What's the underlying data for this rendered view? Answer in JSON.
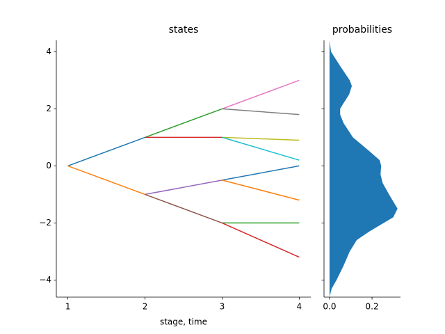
{
  "chart_data": [
    {
      "type": "line",
      "title": "states",
      "xlabel": "stage, time",
      "xlim": [
        0.85,
        4.15
      ],
      "xticks": [
        1,
        2,
        3,
        4
      ],
      "ylim": [
        -4.6,
        4.4
      ],
      "yticks": [
        {
          "value": -4,
          "label": "−4"
        },
        {
          "value": -2,
          "label": "−2"
        },
        0,
        2,
        4
      ],
      "series": [
        {
          "color": "#1f77b4",
          "x": [
            1,
            2
          ],
          "values": [
            0,
            1
          ]
        },
        {
          "color": "#ff7f0e",
          "x": [
            1,
            2
          ],
          "values": [
            0,
            -1
          ]
        },
        {
          "color": "#2ca02c",
          "x": [
            2,
            3
          ],
          "values": [
            1,
            2
          ]
        },
        {
          "color": "#d62728",
          "x": [
            2,
            3
          ],
          "values": [
            1,
            1
          ]
        },
        {
          "color": "#9467bd",
          "x": [
            2,
            3
          ],
          "values": [
            -1,
            -0.5
          ]
        },
        {
          "color": "#8c564b",
          "x": [
            2,
            3
          ],
          "values": [
            -1,
            -2
          ]
        },
        {
          "color": "#e377c2",
          "x": [
            3,
            4
          ],
          "values": [
            2,
            3
          ]
        },
        {
          "color": "#7f7f7f",
          "x": [
            3,
            4
          ],
          "values": [
            2,
            1.8
          ]
        },
        {
          "color": "#bcbd22",
          "x": [
            3,
            4
          ],
          "values": [
            1,
            0.9
          ]
        },
        {
          "color": "#17becf",
          "x": [
            3,
            4
          ],
          "values": [
            1,
            0.2
          ]
        },
        {
          "color": "#1f77b4",
          "x": [
            3,
            4
          ],
          "values": [
            -0.5,
            0
          ]
        },
        {
          "color": "#ff7f0e",
          "x": [
            3,
            4
          ],
          "values": [
            -0.5,
            -1.2
          ]
        },
        {
          "color": "#2ca02c",
          "x": [
            3,
            4
          ],
          "values": [
            -2,
            -2
          ]
        },
        {
          "color": "#d62728",
          "x": [
            3,
            4
          ],
          "values": [
            -2,
            -3.2
          ]
        }
      ]
    },
    {
      "type": "area",
      "title": "probabilities",
      "color": "#1f77b4",
      "xlim": [
        -0.026,
        0.334
      ],
      "xticks": [
        {
          "value": 0,
          "label": "0.0"
        },
        0.2
      ],
      "ylim": [
        -4.6,
        4.4
      ],
      "y": [
        4.4,
        4,
        3.5,
        3,
        2.8,
        2.5,
        2.2,
        2,
        1.8,
        1.5,
        1,
        0.5,
        0.2,
        0,
        -0.3,
        -0.6,
        -1,
        -1.5,
        -1.8,
        -2,
        -2.3,
        -2.6,
        -3,
        -3.5,
        -4,
        -4.3,
        -4.6
      ],
      "values": [
        0,
        0.007,
        0.05,
        0.095,
        0.105,
        0.092,
        0.066,
        0.05,
        0.05,
        0.066,
        0.11,
        0.19,
        0.236,
        0.243,
        0.24,
        0.25,
        0.28,
        0.32,
        0.3,
        0.255,
        0.187,
        0.128,
        0.095,
        0.066,
        0.033,
        0.01,
        0
      ]
    }
  ]
}
